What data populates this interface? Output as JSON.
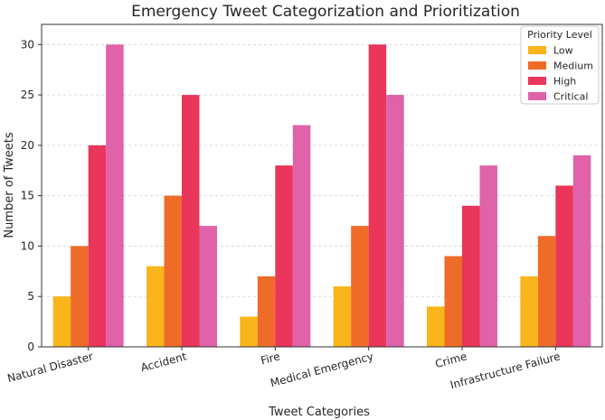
{
  "chart_data": {
    "type": "bar",
    "title": "Emergency Tweet Categorization and Prioritization",
    "xlabel": "Tweet Categories",
    "ylabel": "Number of Tweets",
    "categories": [
      "Natural Disaster",
      "Accident",
      "Fire",
      "Medical Emergency",
      "Crime",
      "Infrastructure Failure"
    ],
    "series": [
      {
        "name": "Low",
        "color": "#f9b51b",
        "values": [
          5,
          8,
          3,
          6,
          4,
          7
        ]
      },
      {
        "name": "Medium",
        "color": "#ee6c28",
        "values": [
          10,
          15,
          7,
          12,
          9,
          11
        ]
      },
      {
        "name": "High",
        "color": "#e9365a",
        "values": [
          20,
          25,
          18,
          30,
          14,
          16
        ]
      },
      {
        "name": "Critical",
        "color": "#e062a8",
        "values": [
          30,
          12,
          22,
          25,
          18,
          19
        ]
      }
    ],
    "ylim": [
      0,
      32
    ],
    "yticks": [
      0,
      5,
      10,
      15,
      20,
      25,
      30
    ],
    "grid": true,
    "legend": {
      "title": "Priority Level",
      "position": "top-right"
    }
  }
}
